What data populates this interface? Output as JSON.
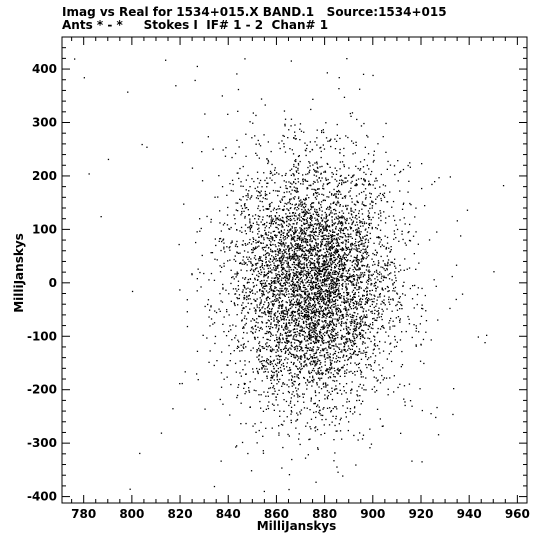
{
  "header": {
    "line1": "Imag vs Real for 1534+015.X BAND.1   Source:1534+015",
    "line2": "Ants * - *     Stokes I  IF# 1 - 2  Chan# 1"
  },
  "chart_data": {
    "type": "scatter",
    "xlabel": "MilliJanskys",
    "ylabel": "MilliJanskys",
    "xlim": [
      771,
      964
    ],
    "ylim": [
      -412,
      460
    ],
    "xticks": [
      780,
      800,
      820,
      840,
      860,
      880,
      900,
      920,
      940,
      960
    ],
    "yticks": [
      -400,
      -300,
      -200,
      -100,
      0,
      100,
      200,
      300,
      400
    ],
    "grid": false,
    "legend": "none",
    "point_color": "#000000",
    "series": [
      {
        "distribution": "approximately gaussian cloud of about 6000 visibility points",
        "center": [
          875,
          0
        ],
        "std_x": 16,
        "std_y": 110,
        "count": 6000,
        "outliers": [
          [
            776,
            420
          ],
          [
            780,
            385
          ],
          [
            782,
            205
          ],
          [
            787,
            125
          ],
          [
            798,
            358
          ],
          [
            800,
            -15
          ],
          [
            804,
            260
          ],
          [
            803,
            -318
          ],
          [
            826,
            380
          ],
          [
            830,
            317
          ],
          [
            834,
            -380
          ],
          [
            927,
            -283
          ],
          [
            954,
            183
          ],
          [
            950,
            22
          ],
          [
            947,
            -97
          ],
          [
            939,
            137
          ],
          [
            937,
            -20
          ],
          [
            933,
            -245
          ],
          [
            799,
            -385
          ],
          [
            812,
            -280
          ],
          [
            806,
            255
          ],
          [
            818,
            370
          ],
          [
            790,
            232
          ]
        ]
      }
    ]
  }
}
